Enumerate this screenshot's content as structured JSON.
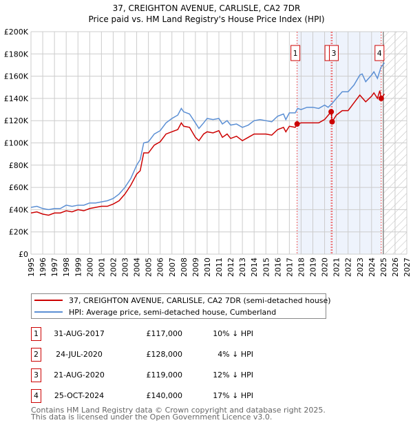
{
  "chart_data": {
    "type": "line",
    "title": "37, CREIGHTON AVENUE, CARLISLE, CA2 7DR",
    "subtitle": "Price paid vs. HM Land Registry's House Price Index (HPI)",
    "xlim": [
      1995,
      2027
    ],
    "ylim": [
      0,
      200000
    ],
    "yticks": [
      "£0",
      "£20K",
      "£40K",
      "£60K",
      "£80K",
      "£100K",
      "£120K",
      "£140K",
      "£160K",
      "£180K",
      "£200K"
    ],
    "xticks": [
      "1995",
      "1996",
      "1997",
      "1998",
      "1999",
      "2000",
      "2001",
      "2002",
      "2003",
      "2004",
      "2005",
      "2006",
      "2007",
      "2008",
      "2009",
      "2010",
      "2011",
      "2012",
      "2013",
      "2014",
      "2015",
      "2016",
      "2017",
      "2018",
      "2019",
      "2020",
      "2021",
      "2022",
      "2023",
      "2024",
      "2025",
      "2026",
      "2027"
    ],
    "grid": true,
    "forecast_start": 2025,
    "shaded_range": [
      2017.66,
      2024.82
    ],
    "series": [
      {
        "name": "37, CREIGHTON AVENUE, CARLISLE, CA2 7DR (semi-detached house)",
        "color": "#cc0000",
        "x": [
          1995,
          1995.5,
          1996,
          1996.5,
          1997,
          1997.5,
          1998,
          1998.5,
          1999,
          1999.5,
          2000,
          2000.5,
          2001,
          2001.5,
          2002,
          2002.5,
          2003,
          2003.5,
          2004,
          2004.3,
          2004.6,
          2005,
          2005.5,
          2006,
          2006.5,
          2007,
          2007.5,
          2007.8,
          2008,
          2008.5,
          2009,
          2009.3,
          2009.7,
          2010,
          2010.5,
          2011,
          2011.3,
          2011.7,
          2012,
          2012.5,
          2013,
          2013.5,
          2014,
          2014.5,
          2015,
          2015.5,
          2016,
          2016.5,
          2016.7,
          2017,
          2017.5,
          2017.66,
          2018,
          2018.5,
          2019,
          2019.5,
          2020,
          2020.56,
          2020.64,
          2021,
          2021.5,
          2022,
          2022.5,
          2023,
          2023.5,
          2024,
          2024.2,
          2024.5,
          2024.7,
          2024.82,
          2025.1
        ],
        "y": [
          37,
          38,
          36,
          35,
          37,
          37,
          39,
          38,
          40,
          39,
          41,
          42,
          43,
          43,
          45,
          48,
          54,
          62,
          72,
          75,
          91,
          91,
          98,
          101,
          108,
          110,
          112,
          118,
          115,
          114,
          105,
          102,
          108,
          110,
          109,
          111,
          105,
          108,
          104,
          106,
          102,
          105,
          108,
          108,
          108,
          107,
          112,
          114,
          110,
          115,
          114,
          117,
          118,
          118,
          118,
          118,
          121,
          128,
          119,
          125,
          129,
          129,
          136,
          143,
          137,
          142,
          145,
          140,
          147,
          140,
          144
        ]
      },
      {
        "name": "HPI: Average price, semi-detached house, Cumberland",
        "color": "#5b8fd4",
        "x": [
          1995,
          1995.5,
          1996,
          1996.5,
          1997,
          1997.5,
          1998,
          1998.5,
          1999,
          1999.5,
          2000,
          2000.5,
          2001,
          2001.5,
          2002,
          2002.5,
          2003,
          2003.5,
          2004,
          2004.3,
          2004.6,
          2005,
          2005.5,
          2006,
          2006.5,
          2007,
          2007.5,
          2007.8,
          2008,
          2008.5,
          2009,
          2009.3,
          2009.7,
          2010,
          2010.5,
          2011,
          2011.3,
          2011.7,
          2012,
          2012.5,
          2013,
          2013.5,
          2014,
          2014.5,
          2015,
          2015.5,
          2016,
          2016.5,
          2016.7,
          2017,
          2017.5,
          2017.7,
          2018,
          2018.5,
          2019,
          2019.5,
          2020,
          2020.3,
          2020.6,
          2021,
          2021.5,
          2022,
          2022.5,
          2023,
          2023.2,
          2023.5,
          2024,
          2024.2,
          2024.5,
          2024.8,
          2025.1
        ],
        "y": [
          42,
          43,
          41,
          40,
          41,
          41,
          44,
          43,
          44,
          44,
          46,
          46,
          47,
          48,
          50,
          54,
          60,
          68,
          80,
          85,
          100,
          101,
          108,
          111,
          118,
          122,
          125,
          131,
          128,
          126,
          118,
          113,
          118,
          122,
          121,
          122,
          117,
          120,
          116,
          117,
          114,
          116,
          120,
          121,
          120,
          119,
          124,
          126,
          121,
          127,
          127,
          131,
          130,
          132,
          132,
          131,
          134,
          132,
          135,
          140,
          146,
          146,
          152,
          161,
          162,
          155,
          161,
          164,
          158,
          168,
          172
        ]
      }
    ],
    "markers": [
      {
        "label": "1",
        "x": 2017.66,
        "y": 117
      },
      {
        "label": "2",
        "x": 2020.56,
        "y": 128
      },
      {
        "label": "3",
        "x": 2020.64,
        "y": 119
      },
      {
        "label": "4",
        "x": 2024.82,
        "y": 140
      }
    ],
    "y_units": "thousand GBP"
  },
  "transactions": [
    {
      "num": "1",
      "date": "31-AUG-2017",
      "price": "£117,000",
      "hpi": "10% ↓ HPI"
    },
    {
      "num": "2",
      "date": "24-JUL-2020",
      "price": "£128,000",
      "hpi": "4% ↓ HPI"
    },
    {
      "num": "3",
      "date": "21-AUG-2020",
      "price": "£119,000",
      "hpi": "12% ↓ HPI"
    },
    {
      "num": "4",
      "date": "25-OCT-2024",
      "price": "£140,000",
      "hpi": "17% ↓ HPI"
    }
  ],
  "footer": {
    "line1": "Contains HM Land Registry data © Crown copyright and database right 2025.",
    "line2": "This data is licensed under the Open Government Licence v3.0."
  }
}
